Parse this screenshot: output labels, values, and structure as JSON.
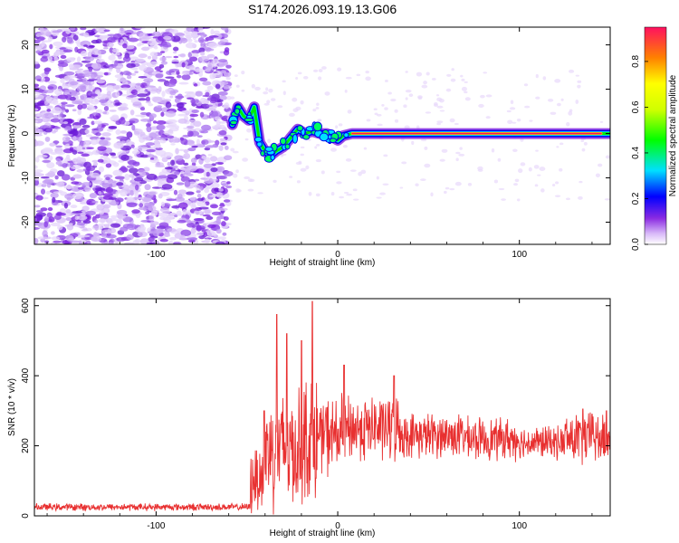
{
  "title": "S174.2026.093.19.13.G06",
  "chart_data": [
    {
      "type": "heatmap",
      "title": "S174.2026.093.19.13.G06",
      "xlabel": "Height of straight line (km)",
      "ylabel": "Frequency (Hz)",
      "xlim": [
        -167,
        150
      ],
      "ylim": [
        -25,
        24
      ],
      "xticks": [
        -100,
        0,
        100
      ],
      "yticks": [
        -20,
        -10,
        0,
        10,
        20
      ],
      "noise_region_x": [
        -167,
        -60
      ],
      "ridge": {
        "x": [
          -58,
          -55,
          -52,
          -49,
          -46,
          -43,
          -40,
          -37,
          -34,
          -30,
          -26,
          -22,
          -18,
          -14,
          -10,
          -6,
          -2,
          0,
          3,
          8,
          15,
          30,
          60,
          90,
          120,
          150
        ],
        "hz": [
          2,
          6,
          4,
          3,
          6,
          -2,
          -4,
          -5,
          -4,
          -3,
          -1,
          1,
          0,
          0.5,
          0,
          0,
          -1,
          -1.5,
          -0.5,
          0,
          0,
          0,
          0,
          0,
          0,
          0
        ]
      },
      "colorbar": {
        "label": "Normalized spectral amplitude",
        "range": [
          0,
          0.95
        ],
        "ticks": [
          0.0,
          0.2,
          0.4,
          0.6,
          0.8
        ]
      }
    },
    {
      "type": "line",
      "xlabel": "Height of straight line (km)",
      "ylabel": "SNR (10 * v/v)",
      "xlim": [
        -167,
        150
      ],
      "ylim": [
        0,
        620
      ],
      "xticks": [
        -100,
        0,
        100
      ],
      "yticks": [
        0,
        200,
        400,
        600
      ],
      "color": "#e83030",
      "segments": [
        {
          "x": [
            -167,
            -48
          ],
          "mean": 25,
          "amp": 12
        },
        {
          "x": [
            -48,
            -40
          ],
          "mean": 110,
          "amp": 120
        },
        {
          "x": [
            -40,
            -20
          ],
          "mean": 190,
          "amp": 200
        },
        {
          "x": [
            -20,
            -10
          ],
          "mean": 220,
          "amp": 210
        },
        {
          "x": [
            -10,
            5
          ],
          "mean": 230,
          "amp": 130
        },
        {
          "x": [
            5,
            35
          ],
          "mean": 250,
          "amp": 110
        },
        {
          "x": [
            35,
            70
          ],
          "mean": 230,
          "amp": 75
        },
        {
          "x": [
            70,
            100
          ],
          "mean": 220,
          "amp": 70
        },
        {
          "x": [
            100,
            125
          ],
          "mean": 210,
          "amp": 55
        },
        {
          "x": [
            125,
            150
          ],
          "mean": 220,
          "amp": 90
        }
      ],
      "peaks": [
        {
          "x": -33.5,
          "y": 575
        },
        {
          "x": -28,
          "y": 520
        },
        {
          "x": -14,
          "y": 612
        },
        {
          "x": -20,
          "y": 500
        },
        {
          "x": 3.5,
          "y": 430
        },
        {
          "x": 31,
          "y": 400
        },
        {
          "x": -40.5,
          "y": 300
        },
        {
          "x": 135,
          "y": 305
        },
        {
          "x": 140,
          "y": 290
        },
        {
          "x": 148,
          "y": 300
        }
      ]
    }
  ]
}
